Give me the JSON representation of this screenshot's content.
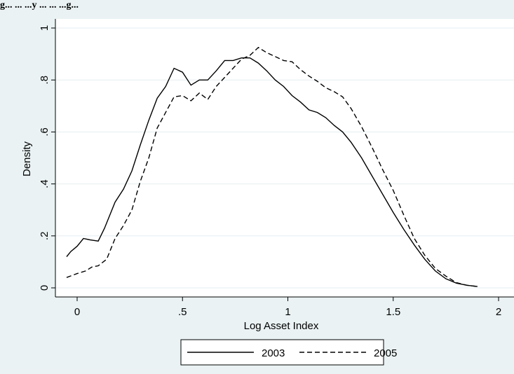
{
  "figure": {
    "title_fragment": "g... ... ...y ... ... ...g..."
  },
  "chart_data": {
    "type": "line",
    "xlabel": "Log Asset Index",
    "ylabel": "Density",
    "xlim": [
      -0.1,
      2.0
    ],
    "ylim": [
      -0.03,
      1.03
    ],
    "x_ticks": [
      {
        "value": 0,
        "label": "0"
      },
      {
        "value": 0.5,
        "label": ".5"
      },
      {
        "value": 1,
        "label": "1"
      },
      {
        "value": 1.5,
        "label": "1.5"
      },
      {
        "value": 2,
        "label": "2"
      }
    ],
    "y_ticks": [
      {
        "value": 0,
        "label": "0"
      },
      {
        "value": 0.2,
        "label": ".2"
      },
      {
        "value": 0.4,
        "label": ".4"
      },
      {
        "value": 0.6,
        "label": ".6"
      },
      {
        "value": 0.8,
        "label": ".8"
      },
      {
        "value": 1,
        "label": "1"
      }
    ],
    "grid": "horizontal",
    "legend_position": "bottom",
    "series": [
      {
        "name": "2003",
        "style": "solid",
        "color": "#000000",
        "x": [
          -0.05,
          -0.03,
          0.0,
          0.03,
          0.06,
          0.1,
          0.13,
          0.18,
          0.22,
          0.26,
          0.3,
          0.34,
          0.38,
          0.42,
          0.46,
          0.5,
          0.54,
          0.58,
          0.62,
          0.66,
          0.7,
          0.74,
          0.78,
          0.82,
          0.86,
          0.9,
          0.94,
          0.98,
          1.02,
          1.06,
          1.1,
          1.14,
          1.18,
          1.22,
          1.26,
          1.3,
          1.35,
          1.4,
          1.45,
          1.5,
          1.55,
          1.6,
          1.65,
          1.7,
          1.75,
          1.8,
          1.85,
          1.9
        ],
        "values": [
          0.12,
          0.14,
          0.16,
          0.19,
          0.185,
          0.18,
          0.23,
          0.33,
          0.38,
          0.45,
          0.55,
          0.645,
          0.73,
          0.775,
          0.845,
          0.83,
          0.78,
          0.8,
          0.8,
          0.835,
          0.875,
          0.875,
          0.885,
          0.885,
          0.865,
          0.835,
          0.8,
          0.775,
          0.74,
          0.715,
          0.685,
          0.675,
          0.655,
          0.625,
          0.6,
          0.56,
          0.5,
          0.43,
          0.36,
          0.29,
          0.225,
          0.165,
          0.11,
          0.065,
          0.035,
          0.018,
          0.01,
          0.005
        ]
      },
      {
        "name": "2005",
        "style": "dashed",
        "color": "#000000",
        "x": [
          -0.05,
          0.0,
          0.04,
          0.07,
          0.1,
          0.14,
          0.18,
          0.22,
          0.26,
          0.3,
          0.34,
          0.38,
          0.42,
          0.46,
          0.5,
          0.54,
          0.58,
          0.62,
          0.66,
          0.7,
          0.74,
          0.78,
          0.82,
          0.86,
          0.9,
          0.94,
          0.98,
          1.02,
          1.06,
          1.1,
          1.14,
          1.18,
          1.22,
          1.26,
          1.3,
          1.35,
          1.4,
          1.45,
          1.5,
          1.55,
          1.6,
          1.65,
          1.7,
          1.75,
          1.8,
          1.85,
          1.9
        ],
        "values": [
          0.04,
          0.055,
          0.065,
          0.08,
          0.085,
          0.11,
          0.19,
          0.24,
          0.3,
          0.41,
          0.5,
          0.615,
          0.675,
          0.735,
          0.74,
          0.72,
          0.75,
          0.725,
          0.775,
          0.81,
          0.845,
          0.88,
          0.895,
          0.925,
          0.905,
          0.89,
          0.875,
          0.87,
          0.84,
          0.815,
          0.795,
          0.77,
          0.755,
          0.735,
          0.69,
          0.62,
          0.54,
          0.455,
          0.375,
          0.28,
          0.19,
          0.125,
          0.075,
          0.045,
          0.02,
          0.01,
          0.005
        ]
      }
    ]
  }
}
